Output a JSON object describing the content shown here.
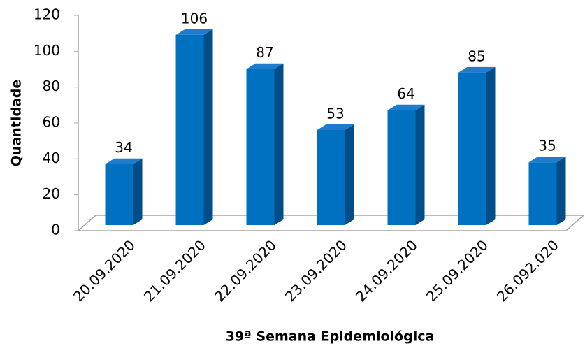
{
  "chart_data": {
    "type": "bar",
    "categories": [
      "20.09.2020",
      "21.09.2020",
      "22.09.2020",
      "23.09.2020",
      "24.09.2020",
      "25.09.2020",
      "26.092.020"
    ],
    "values": [
      34,
      106,
      87,
      53,
      64,
      85,
      35
    ],
    "color": "#0070c0",
    "ylim": [
      0,
      120
    ],
    "yticks": [
      0,
      20,
      40,
      60,
      80,
      100,
      120
    ],
    "y_label": "Quantidade",
    "x_label": "39ª Semana Epidemiológica"
  }
}
